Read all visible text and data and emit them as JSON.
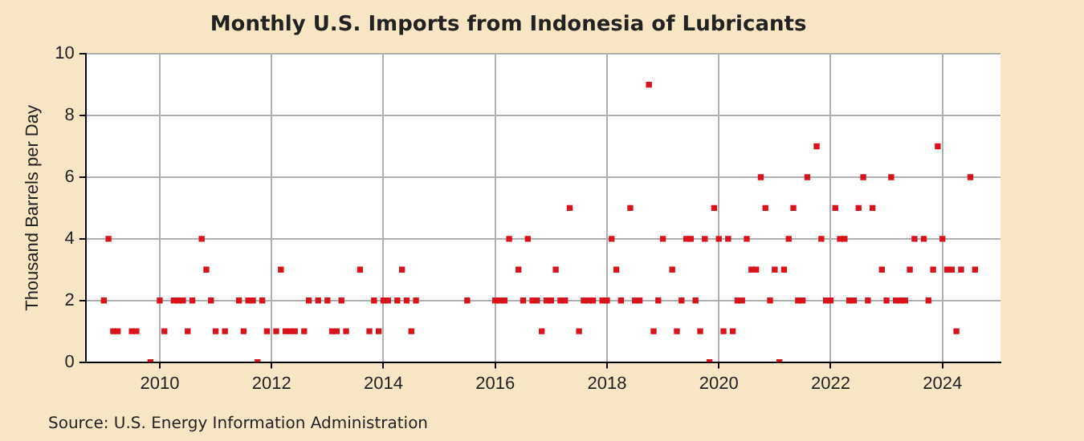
{
  "chart_data": {
    "type": "scatter",
    "title": "Monthly U.S. Imports from Indonesia of Lubricants",
    "ylabel": "Thousand Barrels per Day",
    "annotations": [
      "Source: U.S. Energy Information Administration"
    ],
    "x": [
      "2009-01",
      "2009-02",
      "2009-03",
      "2009-04",
      "2009-07",
      "2009-08",
      "2009-11",
      "2010-01",
      "2010-02",
      "2010-04",
      "2010-05",
      "2010-06",
      "2010-07",
      "2010-08",
      "2010-10",
      "2010-11",
      "2010-12",
      "2011-01",
      "2011-03",
      "2011-06",
      "2011-07",
      "2011-08",
      "2011-09",
      "2011-10",
      "2011-11",
      "2011-12",
      "2012-02",
      "2012-03",
      "2012-04",
      "2012-05",
      "2012-06",
      "2012-08",
      "2012-09",
      "2012-11",
      "2013-01",
      "2013-02",
      "2013-03",
      "2013-04",
      "2013-05",
      "2013-08",
      "2013-10",
      "2013-11",
      "2013-12",
      "2014-01",
      "2014-02",
      "2014-04",
      "2014-05",
      "2014-06",
      "2014-07",
      "2014-08",
      "2015-07",
      "2016-01",
      "2016-02",
      "2016-03",
      "2016-04",
      "2016-06",
      "2016-07",
      "2016-08",
      "2016-09",
      "2016-10",
      "2016-11",
      "2016-12",
      "2017-01",
      "2017-02",
      "2017-03",
      "2017-04",
      "2017-05",
      "2017-07",
      "2017-08",
      "2017-09",
      "2017-10",
      "2017-12",
      "2018-01",
      "2018-02",
      "2018-03",
      "2018-04",
      "2018-06",
      "2018-07",
      "2018-08",
      "2018-10",
      "2018-11",
      "2018-12",
      "2019-01",
      "2019-03",
      "2019-04",
      "2019-05",
      "2019-06",
      "2019-07",
      "2019-08",
      "2019-09",
      "2019-10",
      "2019-11",
      "2019-12",
      "2020-01",
      "2020-02",
      "2020-03",
      "2020-04",
      "2020-05",
      "2020-06",
      "2020-07",
      "2020-08",
      "2020-09",
      "2020-10",
      "2020-11",
      "2020-12",
      "2021-01",
      "2021-02",
      "2021-03",
      "2021-04",
      "2021-05",
      "2021-06",
      "2021-07",
      "2021-08",
      "2021-10",
      "2021-11",
      "2021-12",
      "2022-01",
      "2022-02",
      "2022-03",
      "2022-04",
      "2022-05",
      "2022-06",
      "2022-07",
      "2022-08",
      "2022-09",
      "2022-10",
      "2022-12",
      "2023-01",
      "2023-02",
      "2023-03",
      "2023-04",
      "2023-05",
      "2023-06",
      "2023-07",
      "2023-09",
      "2023-10",
      "2023-11",
      "2023-12",
      "2024-01",
      "2024-02",
      "2024-03",
      "2024-04",
      "2024-05",
      "2024-07",
      "2024-08"
    ],
    "series": [
      {
        "color": "#d9131b",
        "values": [
          2,
          4,
          1,
          1,
          1,
          1,
          0,
          2,
          1,
          2,
          2,
          2,
          1,
          2,
          4,
          3,
          2,
          1,
          1,
          2,
          1,
          2,
          2,
          0,
          2,
          1,
          1,
          3,
          1,
          1,
          1,
          1,
          2,
          2,
          2,
          1,
          1,
          2,
          1,
          3,
          1,
          2,
          1,
          2,
          2,
          2,
          3,
          2,
          1,
          2,
          2,
          2,
          2,
          2,
          4,
          3,
          2,
          4,
          2,
          2,
          1,
          2,
          2,
          3,
          2,
          2,
          5,
          1,
          2,
          2,
          2,
          2,
          2,
          4,
          3,
          2,
          5,
          2,
          2,
          9,
          1,
          2,
          4,
          3,
          1,
          2,
          4,
          4,
          2,
          1,
          4,
          0,
          5,
          4,
          1,
          4,
          1,
          2,
          2,
          4,
          3,
          3,
          6,
          5,
          2,
          3,
          0,
          3,
          4,
          5,
          2,
          2,
          6,
          7,
          4,
          2,
          2,
          5,
          4,
          4,
          2,
          2,
          5,
          6,
          2,
          5,
          3,
          2,
          6,
          2,
          2,
          2,
          3,
          4,
          4,
          2,
          3,
          7,
          4,
          3,
          3,
          1,
          3,
          6,
          3
        ]
      }
    ],
    "xlim": [
      "2008-09-05",
      "2025-01-15"
    ],
    "xticks": [
      "2010",
      "2012",
      "2014",
      "2016",
      "2018",
      "2020",
      "2022",
      "2024"
    ],
    "ylim": [
      0,
      10
    ],
    "yticks": [
      0,
      2,
      4,
      6,
      8,
      10
    ],
    "grid": true,
    "marker": "square"
  }
}
